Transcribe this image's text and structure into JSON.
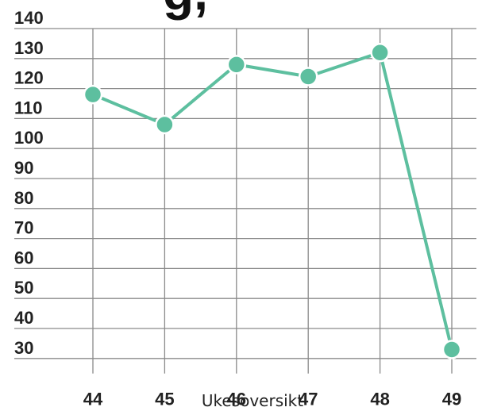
{
  "title_fragment": "g,",
  "colors": {
    "line": "#5dbf9f",
    "grid": "#8a8a8a",
    "text": "#222222"
  },
  "chart_data": {
    "type": "line",
    "title": "",
    "xlabel": "Ukesoversikt",
    "ylabel": "",
    "categories": [
      "44",
      "45",
      "46",
      "47",
      "48",
      "49"
    ],
    "ylim": [
      25,
      140
    ],
    "yticks": [
      140,
      130,
      120,
      110,
      100,
      90,
      80,
      70,
      60,
      50,
      40,
      30
    ],
    "grid": true,
    "legend": "none",
    "series": [
      {
        "values": [
          118,
          108,
          128,
          124,
          132,
          33
        ]
      }
    ]
  }
}
